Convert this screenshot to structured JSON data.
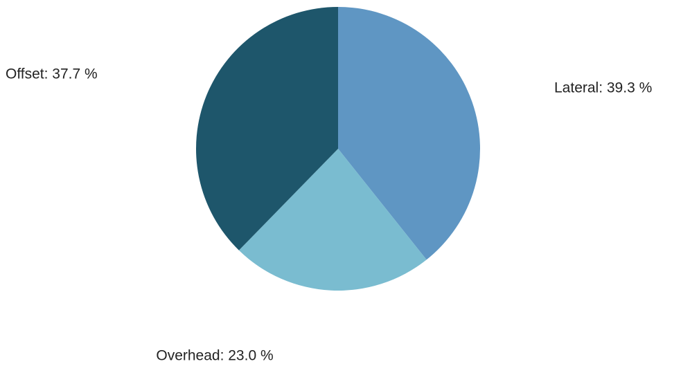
{
  "chart_data": {
    "type": "pie",
    "values": [
      39.3,
      23.0,
      37.7
    ],
    "value_labels": [
      "Lateral: 39.3 %",
      "Overhead: 23.0 %",
      "Offset: 37.7 %"
    ],
    "colors": [
      "#5f96c3",
      "#7abcd0",
      "#1e566b"
    ]
  }
}
